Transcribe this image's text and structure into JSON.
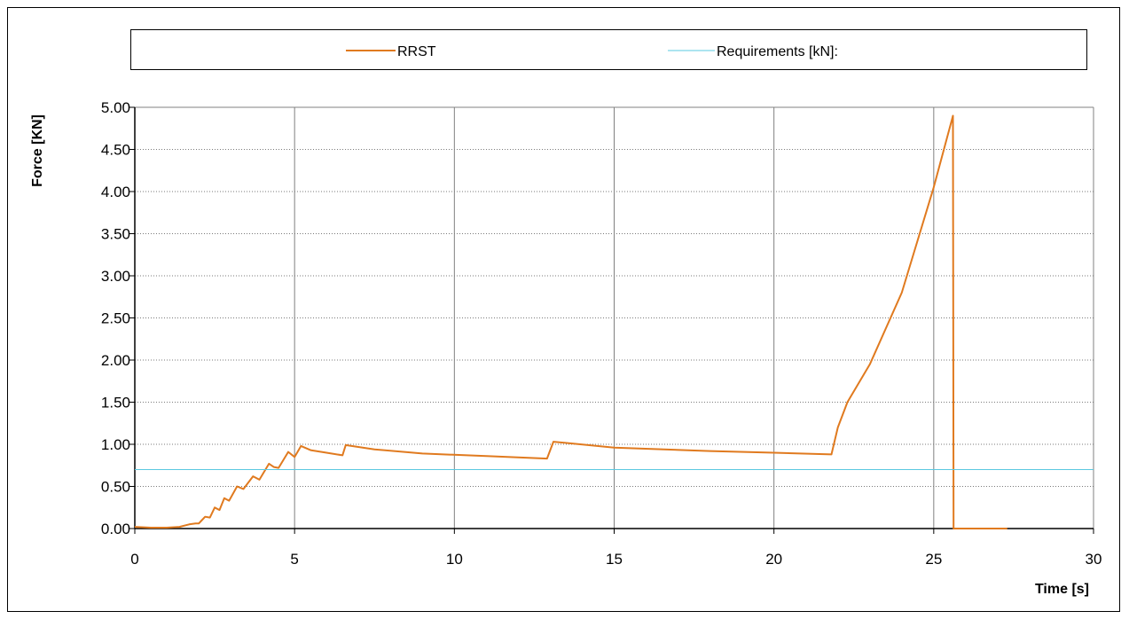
{
  "chart_data": {
    "type": "line",
    "title": "",
    "xlabel": "Time [s]",
    "ylabel": "Force [KN]",
    "xlim": [
      0,
      30
    ],
    "ylim": [
      0,
      5
    ],
    "x_ticks": [
      "0",
      "5",
      "10",
      "15",
      "20",
      "25",
      "30"
    ],
    "y_ticks": [
      "0.00",
      "0.50",
      "1.00",
      "1.50",
      "2.00",
      "2.50",
      "3.00",
      "3.50",
      "4.00",
      "4.50",
      "5.00"
    ],
    "grid": {
      "vertical": true,
      "horizontal": true,
      "horizontal_style": "dotted"
    },
    "legend_position": "top",
    "series": [
      {
        "name": "RRST",
        "color": "#e07a1f",
        "points": [
          [
            0,
            0.02
          ],
          [
            0.5,
            0.01
          ],
          [
            1.0,
            0.01
          ],
          [
            1.4,
            0.02
          ],
          [
            1.7,
            0.05
          ],
          [
            1.9,
            0.06
          ],
          [
            2.0,
            0.06
          ],
          [
            2.1,
            0.1
          ],
          [
            2.2,
            0.14
          ],
          [
            2.35,
            0.13
          ],
          [
            2.5,
            0.25
          ],
          [
            2.65,
            0.22
          ],
          [
            2.8,
            0.36
          ],
          [
            2.95,
            0.33
          ],
          [
            3.2,
            0.5
          ],
          [
            3.4,
            0.47
          ],
          [
            3.7,
            0.62
          ],
          [
            3.9,
            0.58
          ],
          [
            4.2,
            0.77
          ],
          [
            4.35,
            0.73
          ],
          [
            4.5,
            0.72
          ],
          [
            4.8,
            0.91
          ],
          [
            5.0,
            0.85
          ],
          [
            5.2,
            0.98
          ],
          [
            5.5,
            0.93
          ],
          [
            6.0,
            0.9
          ],
          [
            6.5,
            0.87
          ],
          [
            6.6,
            0.99
          ],
          [
            7.5,
            0.94
          ],
          [
            9.0,
            0.89
          ],
          [
            11.0,
            0.86
          ],
          [
            12.9,
            0.83
          ],
          [
            13.1,
            1.03
          ],
          [
            15.0,
            0.96
          ],
          [
            18.0,
            0.92
          ],
          [
            20.0,
            0.9
          ],
          [
            21.8,
            0.88
          ],
          [
            22.0,
            1.2
          ],
          [
            22.3,
            1.5
          ],
          [
            23.0,
            1.95
          ],
          [
            24.0,
            2.8
          ],
          [
            25.0,
            4.05
          ],
          [
            25.6,
            4.9
          ],
          [
            25.62,
            0.0
          ],
          [
            26.0,
            0.0
          ],
          [
            27.3,
            0.0
          ]
        ]
      },
      {
        "name": "Requirements [kN]:",
        "color": "#5bc8e0",
        "points": [
          [
            0,
            0.7
          ],
          [
            30,
            0.7
          ]
        ]
      }
    ]
  }
}
